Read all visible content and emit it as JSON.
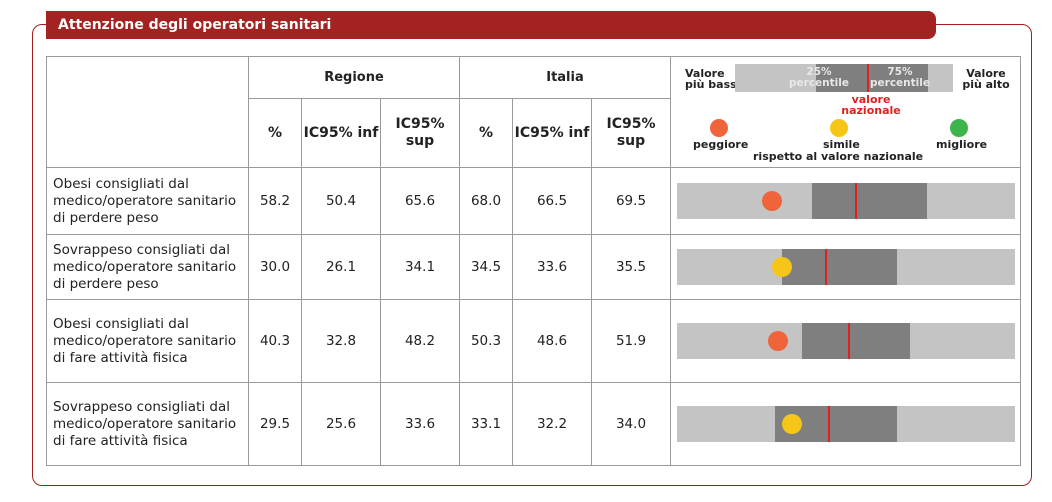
{
  "section_title": "Attenzione degli operatori sanitari",
  "header": {
    "regione": "Regione",
    "italia": "Italia",
    "pct": "%",
    "ic_inf": "IC95% inf",
    "ic_sup": "IC95% sup"
  },
  "legend": {
    "low_line1": "Valore",
    "low_line2": "più basso",
    "high_line1": "Valore",
    "high_line2": "più alto",
    "p25_line1": "25%",
    "p25_line2": "percentile",
    "p75_line1": "75%",
    "p75_line2": "percentile",
    "nat_line1": "valore",
    "nat_line2": "nazionale",
    "worse": "peggiore",
    "similar": "simile",
    "better": "migliore",
    "note": "rispetto al valore nazionale"
  },
  "colors": {
    "brand_red": "#a32322",
    "worse": "#f0643c",
    "similar": "#f5c518",
    "better": "#3db54a",
    "bar_light": "#c4c4c4",
    "bar_dark": "#7f7f7f",
    "national_line": "#e02020"
  },
  "rows": [
    {
      "label": "Obesi consigliati dal medico/operatore sanitario di perdere peso",
      "reg_pct": "58.2",
      "reg_inf": "50.4",
      "reg_sup": "65.6",
      "ita_pct": "68.0",
      "ita_inf": "66.5",
      "ita_sup": "69.5"
    },
    {
      "label": "Sovrappeso consigliati dal medico/operatore sanitario di perdere peso",
      "reg_pct": "30.0",
      "reg_inf": "26.1",
      "reg_sup": "34.1",
      "ita_pct": "34.5",
      "ita_inf": "33.6",
      "ita_sup": "35.5"
    },
    {
      "label": "Obesi consigliati dal medico/operatore sanitario di fare attività fisica",
      "reg_pct": "40.3",
      "reg_inf": "32.8",
      "reg_sup": "48.2",
      "ita_pct": "50.3",
      "ita_inf": "48.6",
      "ita_sup": "51.9"
    },
    {
      "label": "Sovrappeso consigliati dal medico/operatore sanitario di fare attività fisica",
      "reg_pct": "29.5",
      "reg_inf": "25.6",
      "reg_sup": "33.6",
      "ita_pct": "33.1",
      "ita_inf": "32.2",
      "ita_sup": "34.0"
    }
  ],
  "chart_data": {
    "type": "table",
    "columns": [
      "%",
      "IC95% inf",
      "IC95% sup"
    ],
    "groups": [
      "Regione",
      "Italia"
    ],
    "indicators": [
      {
        "name": "Obesi consigliati dal medico/operatore sanitario di perdere peso",
        "regione": 58.2,
        "regione_inf": 50.4,
        "regione_sup": 65.6,
        "italia": 68.0,
        "italia_inf": 66.5,
        "italia_sup": 69.5,
        "comparison": "worse"
      },
      {
        "name": "Sovrappeso consigliati dal medico/operatore sanitario di perdere peso",
        "regione": 30.0,
        "regione_inf": 26.1,
        "regione_sup": 34.1,
        "italia": 34.5,
        "italia_inf": 33.6,
        "italia_sup": 35.5,
        "comparison": "similar"
      },
      {
        "name": "Obesi consigliati dal medico/operatore sanitario di fare attività fisica",
        "regione": 40.3,
        "regione_inf": 32.8,
        "regione_sup": 48.2,
        "italia": 50.3,
        "italia_inf": 48.6,
        "italia_sup": 51.9,
        "comparison": "worse"
      },
      {
        "name": "Sovrappeso consigliati dal medico/operatore sanitario di fare attività fisica",
        "regione": 29.5,
        "regione_inf": 25.6,
        "regione_sup": 33.6,
        "italia": 33.1,
        "italia_inf": 32.2,
        "italia_sup": 34.0,
        "comparison": "similar"
      }
    ],
    "bars": [
      {
        "min": 0.0,
        "p25": 0.4,
        "national": 0.53,
        "p75": 0.74,
        "max": 1.0,
        "region": 0.28,
        "comparison": "worse"
      },
      {
        "min": 0.0,
        "p25": 0.31,
        "national": 0.44,
        "p75": 0.65,
        "max": 1.0,
        "region": 0.31,
        "comparison": "similar"
      },
      {
        "min": 0.0,
        "p25": 0.37,
        "national": 0.51,
        "p75": 0.69,
        "max": 1.0,
        "region": 0.3,
        "comparison": "worse"
      },
      {
        "min": 0.0,
        "p25": 0.29,
        "national": 0.45,
        "p75": 0.65,
        "max": 1.0,
        "region": 0.34,
        "comparison": "similar"
      }
    ]
  }
}
